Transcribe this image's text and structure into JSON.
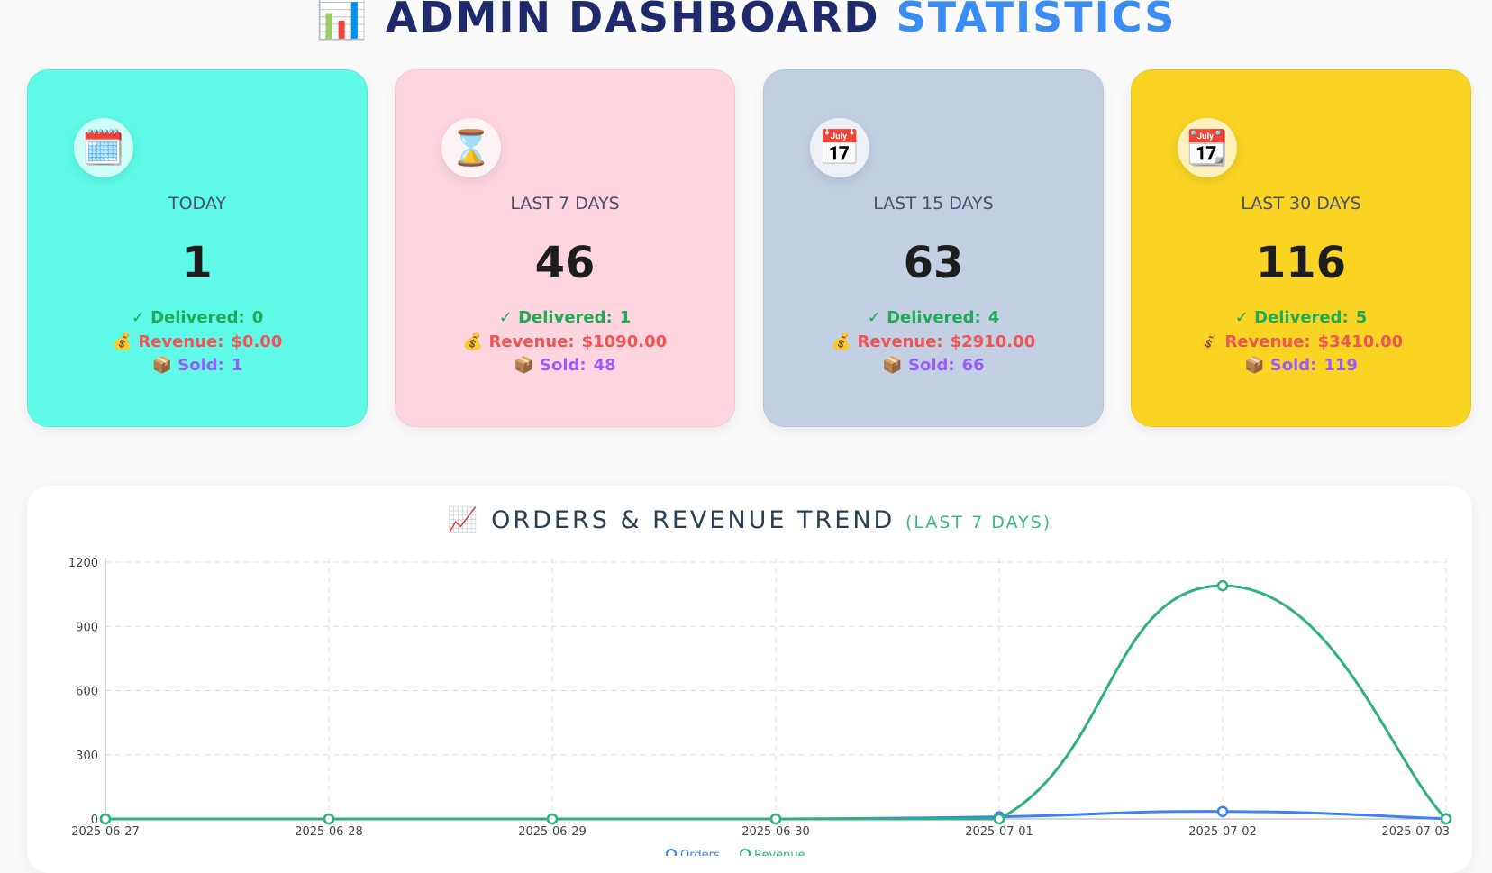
{
  "header": {
    "icon": "bar-chart-icon",
    "icon_glyph": "📊",
    "title": "ADMIN DASHBOARD",
    "title_accent": "STATISTICS"
  },
  "cards": [
    {
      "label": "TODAY",
      "count": "1",
      "icon": "calendar-icon",
      "icon_glyph": "🗓️",
      "bg": "#5ffae8",
      "delivered_label": "✓ Delivered:",
      "delivered": "0",
      "revenue_label": "💰 Revenue:",
      "revenue": "$0.00",
      "sold_label": "📦 Sold:",
      "sold": "1"
    },
    {
      "label": "LAST 7 DAYS",
      "count": "46",
      "icon": "hourglass-icon",
      "icon_glyph": "⌛",
      "bg": "#ffd6e0",
      "delivered_label": "✓ Delivered:",
      "delivered": "1",
      "revenue_label": "💰 Revenue:",
      "revenue": "$1090.00",
      "sold_label": "📦 Sold:",
      "sold": "48"
    },
    {
      "label": "LAST 15 DAYS",
      "count": "63",
      "icon": "calendar-icon",
      "icon_glyph": "📅",
      "bg": "#c3cfe2",
      "delivered_label": "✓ Delivered:",
      "delivered": "4",
      "revenue_label": "💰 Revenue:",
      "revenue": "$2910.00",
      "sold_label": "📦 Sold:",
      "sold": "66"
    },
    {
      "label": "LAST 30 DAYS",
      "count": "116",
      "icon": "tear-off-calendar-icon",
      "icon_glyph": "📆",
      "bg": "#f9d423",
      "delivered_label": "✓ Delivered:",
      "delivered": "5",
      "revenue_label": "💰 Revenue:",
      "revenue": "$3410.00",
      "sold_label": "📦 Sold:",
      "sold": "119"
    }
  ],
  "trend": {
    "icon": "line-chart-icon",
    "icon_glyph": "📈",
    "title": "ORDERS & REVENUE TREND",
    "subtitle": "(LAST 7 DAYS)"
  },
  "chart_data": {
    "type": "line",
    "x": [
      "2025-06-27",
      "2025-06-28",
      "2025-06-29",
      "2025-06-30",
      "2025-07-01",
      "2025-07-02",
      "2025-07-03"
    ],
    "series": [
      {
        "name": "Orders",
        "values": [
          0,
          0,
          0,
          0,
          10,
          35,
          1
        ],
        "color": "#3b82f6"
      },
      {
        "name": "Revenue",
        "values": [
          0,
          0,
          0,
          0,
          0,
          1090,
          0
        ],
        "color": "#2fb07f"
      }
    ],
    "yticks": [
      "0",
      "300",
      "600",
      "900",
      "1200"
    ],
    "ylim": [
      0,
      1200
    ],
    "grid": true,
    "legend": "bottom"
  }
}
